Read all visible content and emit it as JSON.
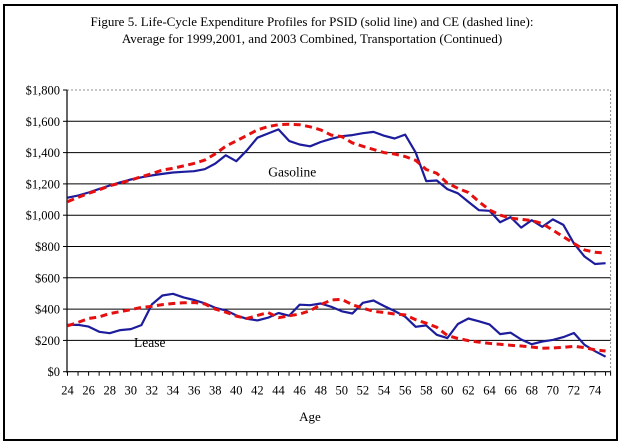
{
  "figure": {
    "title_line1": "Figure 5. Life-Cycle Expenditure Profiles for PSID (solid line) and CE (dashed line):",
    "title_line2": "Average for 1999,2001, and 2003 Combined, Transportation (Continued)"
  },
  "chart_data": {
    "type": "line",
    "title": "Figure 5. Life-Cycle Expenditure Profiles for PSID (solid line) and CE (dashed line): Average for 1999,2001, and 2003 Combined, Transportation (Continued)",
    "xlabel": "Age",
    "ylabel": "",
    "x_range": [
      24,
      75
    ],
    "ylim": [
      0,
      1800
    ],
    "ytick_step": 200,
    "ytick_labels": [
      "$0",
      "$200",
      "$400",
      "$600",
      "$800",
      "$1,000",
      "$1,200",
      "$1,400",
      "$1,600",
      "$1,800"
    ],
    "xtick_label_ages": [
      24,
      26,
      28,
      30,
      32,
      34,
      36,
      38,
      40,
      42,
      44,
      46,
      48,
      50,
      52,
      54,
      56,
      58,
      60,
      62,
      64,
      66,
      68,
      70,
      72,
      74
    ],
    "grid": "horizontal-solid-black, top-and-right-border-dotted-gray",
    "legend_position": "none (inline annotations)",
    "colors": {
      "solid_psid": "#1c1c9c",
      "dashed_ce": "#e60f0f"
    },
    "ages": [
      24,
      25,
      26,
      27,
      28,
      29,
      30,
      31,
      32,
      33,
      34,
      35,
      36,
      37,
      38,
      39,
      40,
      41,
      42,
      43,
      44,
      45,
      46,
      47,
      48,
      49,
      50,
      51,
      52,
      53,
      54,
      55,
      56,
      57,
      58,
      59,
      60,
      61,
      62,
      63,
      64,
      65,
      66,
      67,
      68,
      69,
      70,
      71,
      72,
      73,
      74,
      75
    ],
    "series": [
      {
        "name": "Gasoline PSID (solid line)",
        "group": "Gasoline",
        "style": "solid",
        "values": [
          1112,
          1125,
          1145,
          1168,
          1190,
          1210,
          1228,
          1242,
          1254,
          1264,
          1273,
          1277,
          1281,
          1294,
          1330,
          1383,
          1345,
          1415,
          1495,
          1522,
          1548,
          1475,
          1452,
          1440,
          1468,
          1488,
          1505,
          1512,
          1524,
          1532,
          1508,
          1490,
          1515,
          1400,
          1218,
          1222,
          1167,
          1140,
          1085,
          1032,
          1028,
          955,
          988,
          921,
          968,
          926,
          973,
          938,
          820,
          736,
          688,
          693
        ]
      },
      {
        "name": "Gasoline CE (dashed line)",
        "group": "Gasoline",
        "style": "dashed",
        "values": [
          1086,
          1114,
          1140,
          1162,
          1188,
          1205,
          1224,
          1246,
          1266,
          1288,
          1300,
          1315,
          1331,
          1352,
          1392,
          1441,
          1475,
          1510,
          1545,
          1566,
          1578,
          1581,
          1578,
          1565,
          1545,
          1512,
          1502,
          1462,
          1440,
          1420,
          1400,
          1391,
          1375,
          1350,
          1292,
          1268,
          1205,
          1172,
          1145,
          1086,
          1033,
          1001,
          981,
          974,
          966,
          947,
          905,
          862,
          820,
          778,
          763,
          758
        ]
      },
      {
        "name": "Lease PSID (solid line)",
        "group": "Lease",
        "style": "solid",
        "values": [
          299,
          300,
          288,
          255,
          246,
          266,
          272,
          298,
          430,
          487,
          498,
          475,
          458,
          437,
          408,
          392,
          360,
          338,
          328,
          345,
          375,
          358,
          428,
          425,
          436,
          415,
          386,
          372,
          440,
          455,
          420,
          388,
          352,
          287,
          296,
          236,
          215,
          305,
          340,
          322,
          302,
          240,
          249,
          206,
          176,
          193,
          203,
          221,
          247,
          172,
          131,
          96
        ]
      },
      {
        "name": "Lease CE (dashed line)",
        "group": "Lease",
        "style": "dashed",
        "values": [
          293,
          315,
          340,
          350,
          371,
          384,
          396,
          411,
          417,
          429,
          436,
          440,
          442,
          433,
          400,
          380,
          355,
          340,
          360,
          378,
          345,
          357,
          368,
          390,
          428,
          458,
          462,
          428,
          406,
          386,
          378,
          369,
          363,
          332,
          310,
          284,
          232,
          212,
          199,
          189,
          181,
          175,
          169,
          164,
          158,
          150,
          152,
          156,
          162,
          154,
          139,
          132
        ]
      }
    ],
    "annotations": [
      {
        "text": "Gasoline",
        "age": 45.3,
        "value": 1272
      },
      {
        "text": "Lease",
        "age": 31.8,
        "value": 182
      }
    ]
  }
}
